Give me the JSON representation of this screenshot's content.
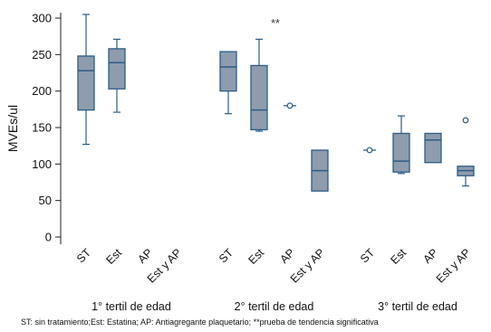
{
  "chart_data": {
    "type": "boxplot",
    "ylabel": "MVEs/ul",
    "ylim": [
      0,
      300
    ],
    "yticks": [
      0,
      50,
      100,
      150,
      200,
      250,
      300
    ],
    "grid": false,
    "legend": false,
    "box_color": "#8e9cad",
    "stroke_color": "#2c5d87",
    "annotation": "**",
    "footnote": "ST: sin tratamiento;Est: Estatina; AP: Antiagregante plaquetario; **prueba de tendencia significativa",
    "groups": [
      {
        "label": "1° tertil de edad",
        "categories": [
          {
            "label": "ST",
            "whisker_low": 127,
            "q1": 174,
            "median": 228,
            "q3": 248,
            "whisker_high": 305,
            "outliers": []
          },
          {
            "label": "Est",
            "whisker_low": 171,
            "q1": 203,
            "median": 239,
            "q3": 258,
            "whisker_high": 271,
            "outliers": []
          },
          {
            "label": "AP",
            "whisker_low": null,
            "q1": null,
            "median": null,
            "q3": null,
            "whisker_high": null,
            "outliers": []
          },
          {
            "label": "Est y AP",
            "whisker_low": null,
            "q1": null,
            "median": null,
            "q3": null,
            "whisker_high": null,
            "outliers": []
          }
        ]
      },
      {
        "label": "2° tertil de edad",
        "categories": [
          {
            "label": "ST",
            "whisker_low": 169,
            "q1": 200,
            "median": 233,
            "q3": 254,
            "whisker_high": 254,
            "outliers": []
          },
          {
            "label": "Est",
            "whisker_low": 145,
            "q1": 147,
            "median": 174,
            "q3": 235,
            "whisker_high": 271,
            "outliers": []
          },
          {
            "label": "AP",
            "whisker_low": 180,
            "q1": 180,
            "median": 180,
            "q3": 180,
            "whisker_high": 180,
            "outliers": [
              180
            ]
          },
          {
            "label": "Est y AP",
            "whisker_low": 63,
            "q1": 63,
            "median": 91,
            "q3": 119,
            "whisker_high": 119,
            "outliers": []
          }
        ]
      },
      {
        "label": "3° tertil de edad",
        "categories": [
          {
            "label": "ST",
            "whisker_low": 119,
            "q1": 119,
            "median": 119,
            "q3": 119,
            "whisker_high": 119,
            "outliers": [
              119
            ]
          },
          {
            "label": "Est",
            "whisker_low": 87,
            "q1": 89,
            "median": 104,
            "q3": 142,
            "whisker_high": 166,
            "outliers": []
          },
          {
            "label": "AP",
            "whisker_low": 102,
            "q1": 102,
            "median": 133,
            "q3": 142,
            "whisker_high": 142,
            "outliers": []
          },
          {
            "label": "Est y AP",
            "whisker_low": 70,
            "q1": 84,
            "median": 91,
            "q3": 97,
            "whisker_high": 97,
            "outliers": [
              160
            ]
          }
        ]
      }
    ]
  }
}
